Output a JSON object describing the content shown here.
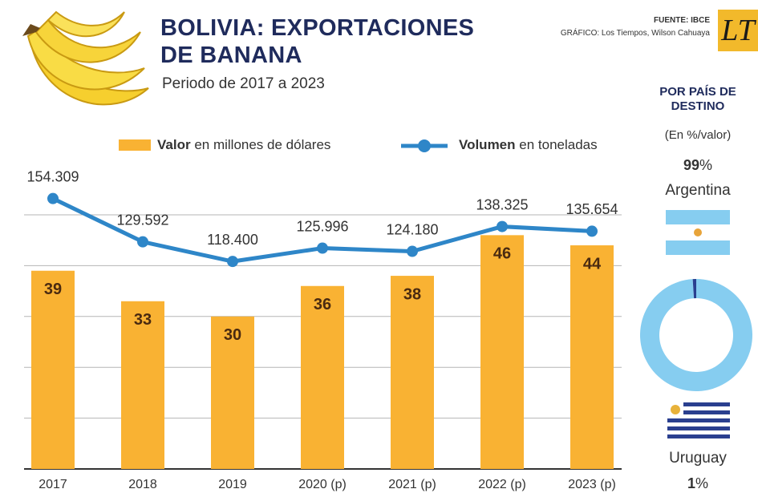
{
  "chart_data": [
    {
      "type": "combo",
      "title": "BOLIVIA: EXPORTACIONES DE BANANA",
      "subtitle": "Periodo de 2017 a 2023",
      "source": "FUENTE: IBCE",
      "credit": "GRÁFICO: Los Tiempos, Wilson Cahuaya",
      "logo": "LT",
      "categories": [
        "2017",
        "2018",
        "2019",
        "2020 (p)",
        "2021 (p)",
        "2022 (p)",
        "2023 (p)"
      ],
      "series": [
        {
          "name": "Valor en millones de dólares",
          "color": "#f9b233",
          "kind": "bar",
          "axis": "y",
          "values": [
            39,
            33,
            30,
            36,
            38,
            46,
            44
          ]
        },
        {
          "name": "Volumen en toneladas",
          "color": "#2e86c8",
          "kind": "line",
          "axis": "y2",
          "values": [
            154309,
            129592,
            118400,
            125996,
            124180,
            138325,
            135654
          ],
          "value_labels": [
            "154.309",
            "129.592",
            "118.400",
            "125.996",
            "124.180",
            "138.325",
            "135.654"
          ]
        }
      ],
      "ylim": [
        0,
        50
      ],
      "yticks": [
        0,
        10,
        20,
        30,
        40,
        50
      ],
      "y2lim": [
        0,
        145000
      ],
      "grid": true
    },
    {
      "type": "donut",
      "title": "POR PAÍS DE DESTINO",
      "subtitle": "(En %/valor)",
      "categories": [
        "Argentina",
        "Uruguay"
      ],
      "values": [
        99,
        1
      ],
      "value_labels": [
        "99%",
        "1%"
      ],
      "colors": [
        "#86cdf0",
        "#2a3f8f"
      ]
    }
  ]
}
